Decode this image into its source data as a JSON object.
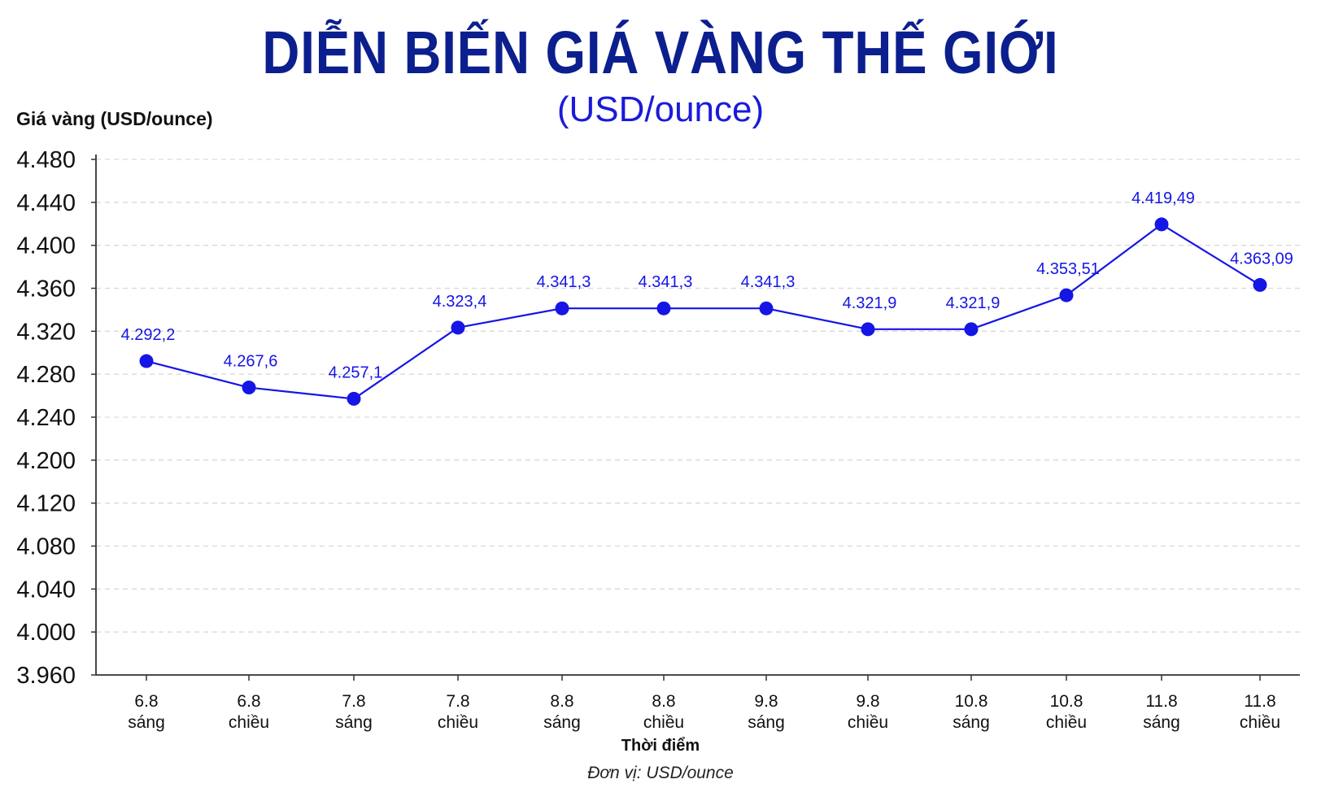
{
  "colors": {
    "title": "#0b1f8e",
    "subtitle": "#1a1adb",
    "series": "#1515e6",
    "data_label": "#1515e6",
    "grid": "#d9d9d9",
    "axis": "#333333",
    "text": "#111111"
  },
  "title": "DIỄN BIẾN GIÁ VÀNG THẾ GIỚI",
  "subtitle": "(USD/ounce)",
  "unit_note": "Đơn vị: USD/ounce",
  "chart_data": {
    "type": "line",
    "title": "DIỄN BIẾN GIÁ VÀNG THẾ GIỚI",
    "subtitle": "(USD/ounce)",
    "ylabel": "Giá vàng (USD/ounce)",
    "xlabel": "Thời điểm",
    "grid": true,
    "grid_style": "dashed",
    "y_ticks": [
      "4.480",
      "4.440",
      "4.400",
      "4.360",
      "4.320",
      "4.280",
      "4.240",
      "4.200",
      "4.120",
      "4.080",
      "4.040",
      "4.000",
      "3.960"
    ],
    "categories": [
      [
        "6.8",
        "sáng"
      ],
      [
        "6.8",
        "chiều"
      ],
      [
        "7.8",
        "sáng"
      ],
      [
        "7.8",
        "chiều"
      ],
      [
        "8.8",
        "sáng"
      ],
      [
        "8.8",
        "chiều"
      ],
      [
        "9.8",
        "sáng"
      ],
      [
        "9.8",
        "chiều"
      ],
      [
        "10.8",
        "sáng"
      ],
      [
        "10.8",
        "chiều"
      ],
      [
        "11.8",
        "sáng"
      ],
      [
        "11.8",
        "chiều"
      ]
    ],
    "values": [
      4292.2,
      4267.6,
      4257.1,
      4323.4,
      4341.3,
      4341.3,
      4341.3,
      4321.9,
      4321.9,
      4353.51,
      4419.49,
      4363.09
    ],
    "data_labels": [
      "4.292,2",
      "4.267,6",
      "4.257,1",
      "4.323,4",
      "4.341,3",
      "4.341,3",
      "4.341,3",
      "4.321,9",
      "4.321,9",
      "4.353,51",
      "4.419,49",
      "4.363,09"
    ],
    "marker": "circle"
  }
}
